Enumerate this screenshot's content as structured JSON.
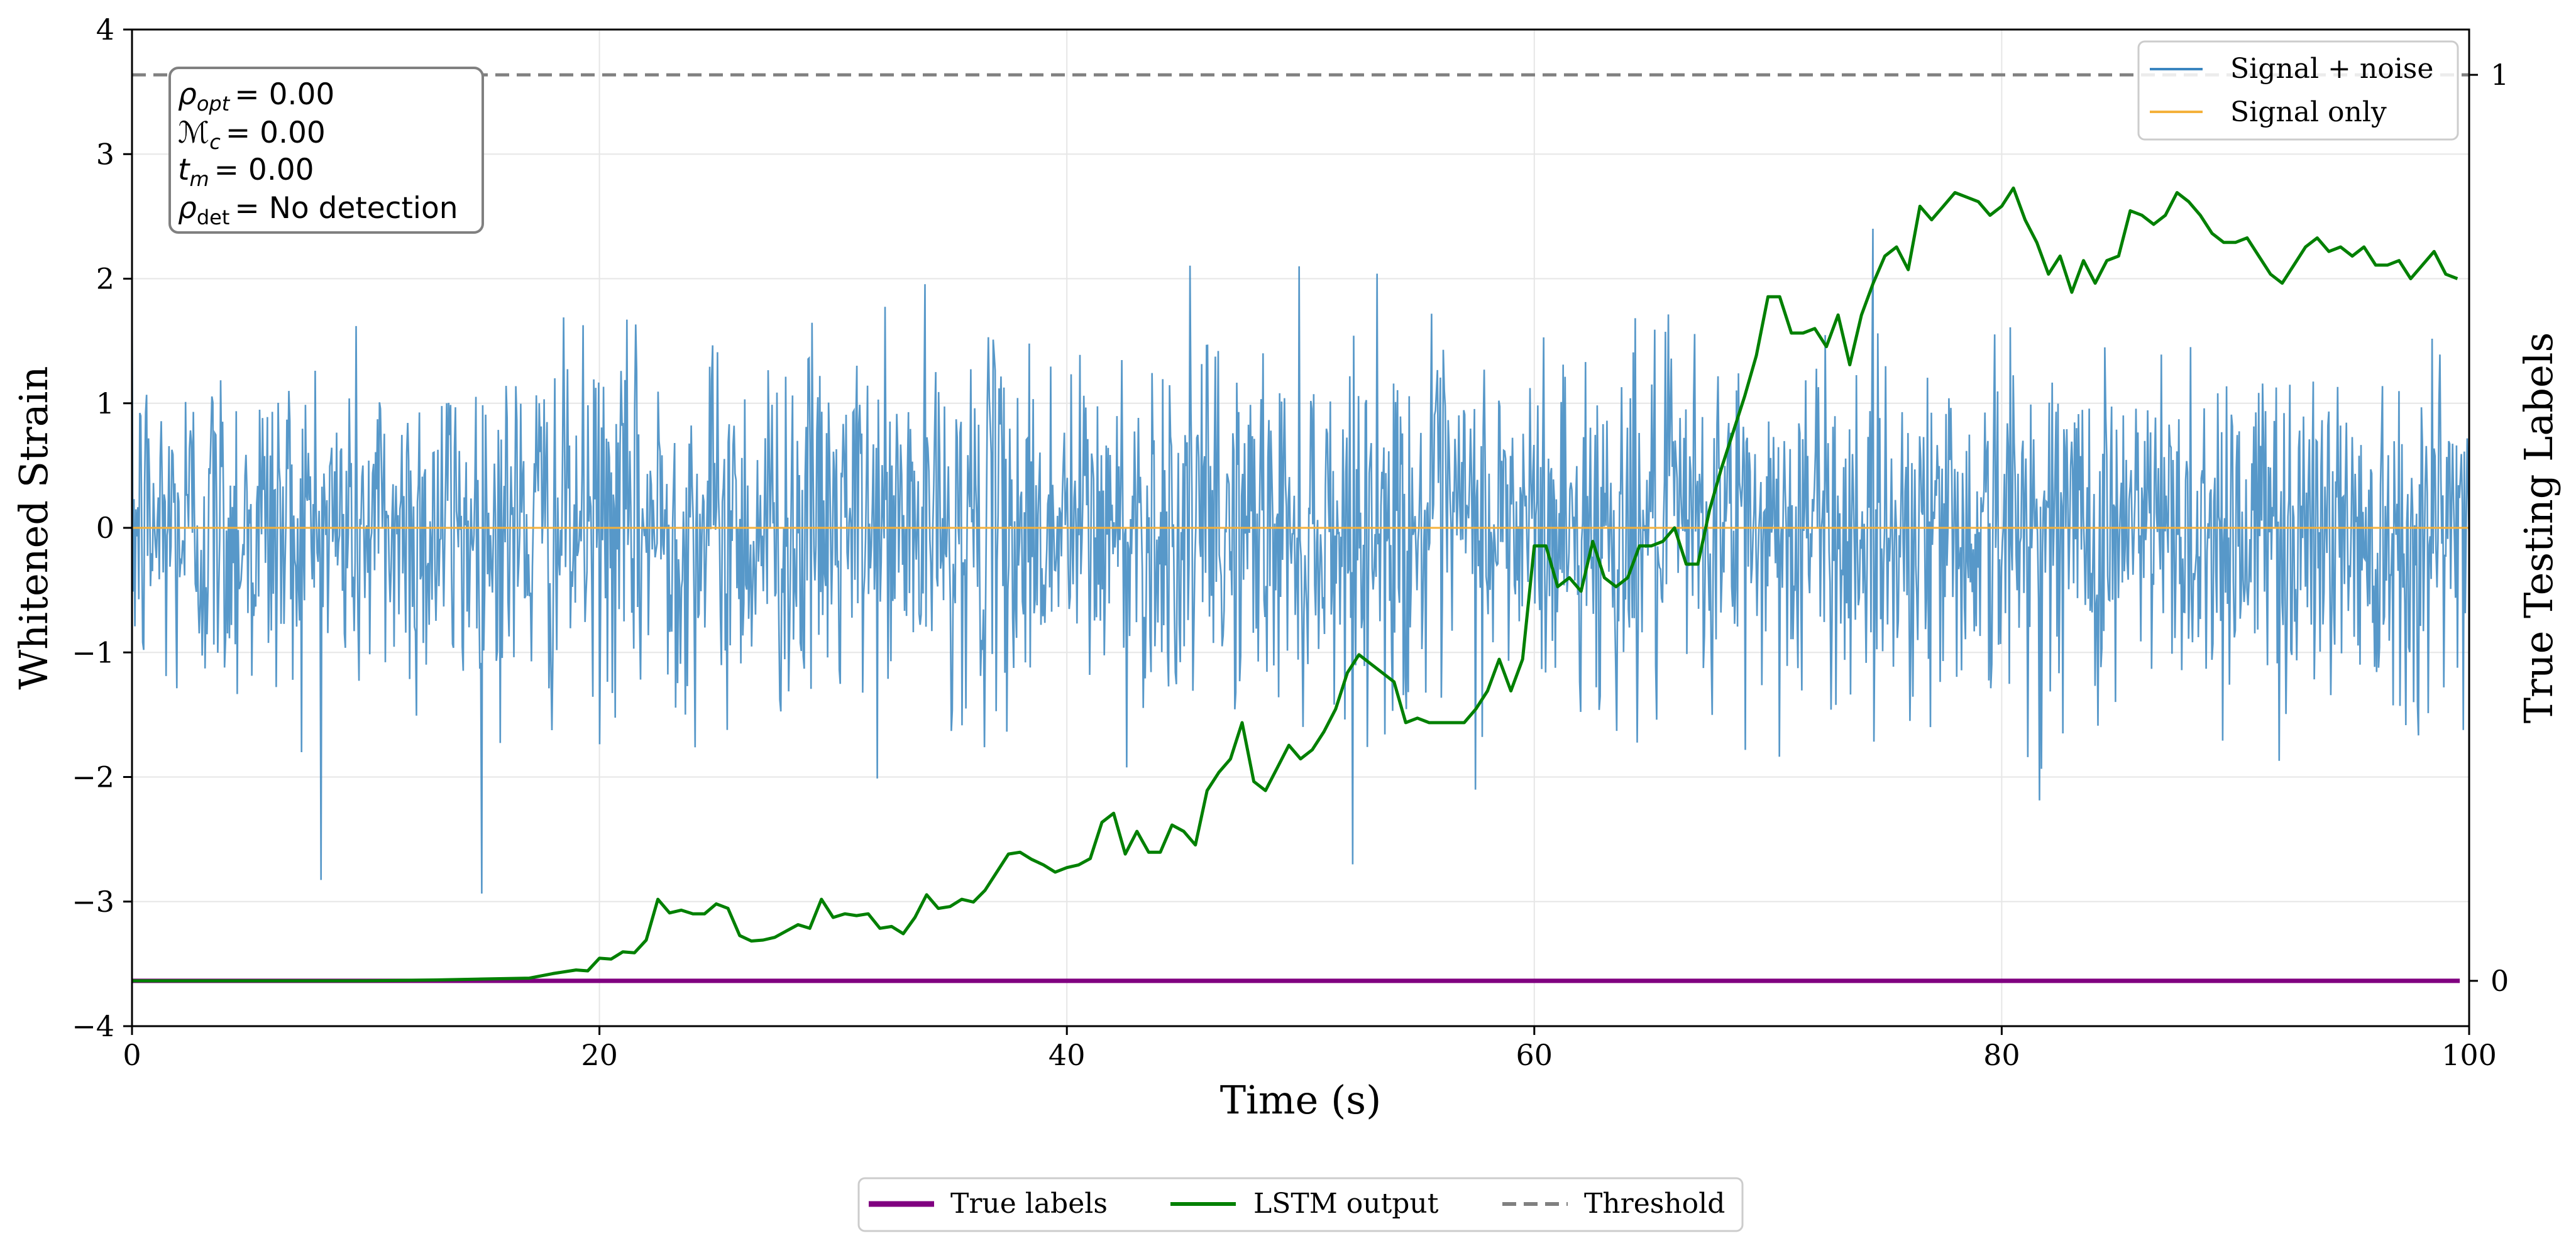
{
  "chart_data": {
    "type": "line",
    "title": "",
    "xlabel": "Time (s)",
    "ylabel": "Whitened Strain",
    "ylabel_right": "True Testing Labels",
    "xlim": [
      0,
      100
    ],
    "ylim": [
      -4,
      4
    ],
    "ylim_right": [
      -0.05,
      1.05
    ],
    "x_ticks": [
      0,
      20,
      40,
      60,
      80,
      100
    ],
    "y_ticks": [
      -4,
      -3,
      -2,
      -1,
      0,
      1,
      2,
      3,
      4
    ],
    "y_tick_labels": [
      "−4",
      "−3",
      "−2",
      "−1",
      "0",
      "1",
      "2",
      "3",
      "4"
    ],
    "y_ticks_right": [
      0,
      1
    ],
    "grid": true,
    "threshold": 1.0,
    "noise": {
      "description_series": "Signal + noise",
      "samples": 2400,
      "std": 0.7
    },
    "series": [
      {
        "name": "Signal + noise",
        "axis": "left",
        "color": "#3a86c0",
        "style": "noise"
      },
      {
        "name": "Signal only",
        "axis": "left",
        "color": "#f4b13b",
        "values_constant": 0
      },
      {
        "name": "True labels",
        "axis": "right",
        "color": "#800080",
        "values_constant": 0
      },
      {
        "name": "LSTM output",
        "axis": "right",
        "color": "#008000",
        "x": [
          0,
          5,
          10,
          13,
          15,
          17,
          18,
          19,
          19.5,
          20,
          20.5,
          21,
          21.5,
          22,
          22.5,
          23,
          23.5,
          24,
          24.5,
          25,
          25.5,
          26,
          26.5,
          27,
          27.5,
          28,
          28.5,
          29,
          29.5,
          30,
          30.5,
          31,
          31.5,
          32,
          32.5,
          33,
          33.5,
          34,
          34.5,
          35,
          35.5,
          36,
          36.5,
          37,
          37.5,
          38,
          38.5,
          39,
          39.5,
          40,
          40.5,
          41,
          41.5,
          42,
          42.5,
          43,
          43.5,
          44,
          44.5,
          45,
          45.5,
          46,
          46.5,
          47,
          47.5,
          48,
          48.5,
          49,
          49.5,
          50,
          50.5,
          51,
          51.5,
          52,
          52.5,
          53,
          53.5,
          54,
          54.5,
          55,
          55.5,
          56,
          56.5,
          57,
          57.5,
          58,
          58.5,
          59,
          59.5,
          60,
          60.5,
          61,
          61.5,
          62,
          62.5,
          63,
          63.5,
          64,
          64.5,
          65,
          65.5,
          66,
          66.5,
          67,
          67.5,
          68,
          68.5,
          69,
          69.5,
          70,
          70.5,
          71,
          71.5,
          72,
          72.5,
          73,
          73.5,
          74,
          74.5,
          75,
          75.5,
          76,
          76.5,
          77,
          77.5,
          78,
          78.5,
          79,
          79.5,
          80,
          80.5,
          81,
          81.5,
          82,
          82.5,
          83,
          83.5,
          84,
          84.5,
          85,
          85.5,
          86,
          86.5,
          87,
          87.5,
          88,
          88.5,
          89,
          89.5,
          90,
          90.5,
          91,
          91.5,
          92,
          92.5,
          93,
          93.5,
          94,
          94.5,
          95,
          95.5,
          96,
          96.5,
          97,
          97.5,
          98,
          98.5,
          99,
          99.5
        ],
        "values": [
          0.0,
          0.0,
          0.0,
          0.001,
          0.002,
          0.003,
          0.008,
          0.012,
          0.011,
          0.025,
          0.024,
          0.032,
          0.031,
          0.045,
          0.09,
          0.075,
          0.078,
          0.074,
          0.074,
          0.085,
          0.08,
          0.05,
          0.044,
          0.045,
          0.048,
          0.055,
          0.062,
          0.058,
          0.09,
          0.07,
          0.074,
          0.072,
          0.074,
          0.058,
          0.06,
          0.052,
          0.07,
          0.095,
          0.08,
          0.082,
          0.09,
          0.087,
          0.1,
          0.12,
          0.14,
          0.142,
          0.134,
          0.128,
          0.12,
          0.125,
          0.128,
          0.135,
          0.175,
          0.185,
          0.14,
          0.165,
          0.142,
          0.142,
          0.172,
          0.165,
          0.15,
          0.21,
          0.23,
          0.245,
          0.285,
          0.22,
          0.21,
          0.235,
          0.26,
          0.245,
          0.255,
          0.275,
          0.3,
          0.34,
          0.36,
          0.35,
          0.34,
          0.33,
          0.285,
          0.29,
          0.285,
          0.285,
          0.285,
          0.285,
          0.3,
          0.32,
          0.355,
          0.32,
          0.355,
          0.48,
          0.48,
          0.435,
          0.445,
          0.43,
          0.485,
          0.445,
          0.435,
          0.445,
          0.48,
          0.48,
          0.485,
          0.5,
          0.46,
          0.46,
          0.52,
          0.565,
          0.605,
          0.645,
          0.69,
          0.755,
          0.755,
          0.715,
          0.715,
          0.72,
          0.7,
          0.735,
          0.68,
          0.735,
          0.77,
          0.8,
          0.81,
          0.785,
          0.855,
          0.84,
          0.855,
          0.87,
          0.865,
          0.86,
          0.845,
          0.855,
          0.875,
          0.84,
          0.815,
          0.78,
          0.8,
          0.76,
          0.795,
          0.77,
          0.795,
          0.8,
          0.85,
          0.845,
          0.835,
          0.845,
          0.87,
          0.86,
          0.845,
          0.825,
          0.815,
          0.815,
          0.82,
          0.8,
          0.78,
          0.77,
          0.79,
          0.81,
          0.82,
          0.805,
          0.81,
          0.8,
          0.81,
          0.79,
          0.79,
          0.795,
          0.775,
          0.79,
          0.805,
          0.78,
          0.775
        ]
      },
      {
        "name": "Threshold",
        "axis": "right",
        "color": "#808080",
        "values_constant": 1.0,
        "style": "dashed"
      }
    ],
    "legend_top_right": [
      "Signal + noise",
      "Signal only"
    ],
    "legend_bottom": [
      "True labels",
      "LSTM output",
      "Threshold"
    ],
    "legend_placement": [
      "top-right",
      "bottom-center"
    ],
    "annotation": {
      "line1_sym": "ρ",
      "line1_sub": "opt",
      "line1_val": "= 0.00",
      "line2_sym": "ℳ",
      "line2_sub": "c",
      "line2_val": "= 0.00",
      "line3_sym": "t",
      "line3_sub": "m",
      "line3_val": "= 0.00",
      "line4_sym": "ρ",
      "line4_sub": "det",
      "line4_val": "= No detection"
    }
  }
}
